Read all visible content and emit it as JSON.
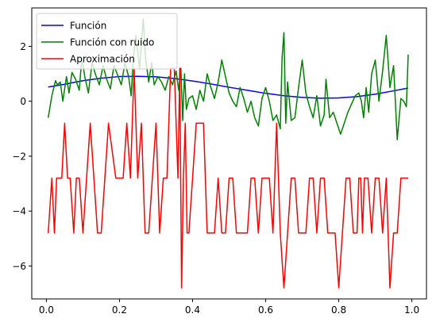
{
  "chart_data": {
    "type": "line",
    "title": "",
    "xlabel": "",
    "ylabel": "",
    "xlim": [
      -0.04,
      1.04
    ],
    "ylim": [
      -7.2,
      3.4
    ],
    "grid": false,
    "legend_position": "top-left",
    "x_ticks": [
      0.0,
      0.2,
      0.4,
      0.6,
      0.8,
      1.0
    ],
    "x_tick_labels": [
      "0.0",
      "0.2",
      "0.4",
      "0.6",
      "0.8",
      "1.0"
    ],
    "y_ticks": [
      2,
      0,
      -2,
      -4,
      -6
    ],
    "y_tick_labels": [
      "2",
      "0",
      "−2",
      "−4",
      "−6"
    ],
    "series": [
      {
        "name": "Función",
        "color": "#0000ff",
        "x": [
          0.005,
          0.05,
          0.1,
          0.15,
          0.2,
          0.25,
          0.3,
          0.35,
          0.4,
          0.45,
          0.5,
          0.55,
          0.6,
          0.65,
          0.7,
          0.75,
          0.8,
          0.85,
          0.9,
          0.95,
          0.99
        ],
        "y": [
          0.52,
          0.62,
          0.75,
          0.84,
          0.9,
          0.91,
          0.89,
          0.83,
          0.74,
          0.63,
          0.51,
          0.4,
          0.29,
          0.2,
          0.14,
          0.11,
          0.12,
          0.17,
          0.26,
          0.38,
          0.48
        ]
      },
      {
        "name": "Función con ruido",
        "color": "#008000",
        "x": [
          0.005,
          0.015,
          0.025,
          0.03,
          0.038,
          0.045,
          0.055,
          0.062,
          0.07,
          0.08,
          0.09,
          0.097,
          0.105,
          0.115,
          0.125,
          0.135,
          0.145,
          0.155,
          0.165,
          0.175,
          0.185,
          0.195,
          0.205,
          0.215,
          0.225,
          0.232,
          0.238,
          0.245,
          0.255,
          0.265,
          0.272,
          0.28,
          0.288,
          0.295,
          0.305,
          0.315,
          0.325,
          0.335,
          0.345,
          0.355,
          0.362,
          0.368,
          0.373,
          0.378,
          0.383,
          0.39,
          0.4,
          0.41,
          0.42,
          0.43,
          0.44,
          0.45,
          0.46,
          0.47,
          0.48,
          0.49,
          0.5,
          0.51,
          0.52,
          0.53,
          0.54,
          0.55,
          0.56,
          0.57,
          0.58,
          0.59,
          0.6,
          0.61,
          0.62,
          0.63,
          0.64,
          0.645,
          0.65,
          0.655,
          0.66,
          0.67,
          0.68,
          0.69,
          0.7,
          0.71,
          0.72,
          0.73,
          0.74,
          0.75,
          0.76,
          0.765,
          0.775,
          0.785,
          0.795,
          0.805,
          0.815,
          0.825,
          0.835,
          0.845,
          0.855,
          0.862,
          0.868,
          0.875,
          0.882,
          0.89,
          0.9,
          0.91,
          0.92,
          0.93,
          0.94,
          0.95,
          0.96,
          0.97,
          0.978,
          0.985,
          0.99
        ],
        "y": [
          -0.6,
          0.2,
          0.75,
          0.6,
          0.7,
          0.0,
          0.9,
          0.3,
          1.05,
          0.8,
          0.4,
          1.6,
          0.9,
          0.3,
          1.4,
          0.95,
          0.6,
          1.3,
          0.8,
          0.45,
          1.3,
          0.95,
          0.6,
          1.4,
          0.9,
          0.2,
          1.6,
          2.4,
          1.2,
          3.0,
          1.5,
          0.7,
          1.4,
          0.6,
          0.9,
          0.7,
          0.4,
          0.9,
          0.6,
          1.1,
          0.4,
          1.2,
          -0.7,
          1.0,
          -0.3,
          0.1,
          0.2,
          -0.3,
          0.4,
          0.0,
          1.0,
          0.5,
          0.1,
          0.7,
          1.5,
          0.9,
          0.3,
          0.0,
          -0.2,
          0.5,
          0.1,
          -0.4,
          0.0,
          -0.6,
          -0.9,
          0.1,
          0.5,
          0.0,
          -0.7,
          -0.5,
          -1.0,
          1.6,
          2.5,
          -0.8,
          0.7,
          -0.7,
          -0.6,
          0.5,
          1.5,
          0.3,
          -0.2,
          -0.6,
          0.2,
          -0.9,
          -0.5,
          0.8,
          -0.6,
          -0.4,
          -0.8,
          -1.2,
          -0.8,
          -0.4,
          -0.1,
          0.2,
          0.3,
          0.0,
          -0.6,
          0.5,
          -0.4,
          1.0,
          1.5,
          0.0,
          1.1,
          2.4,
          0.5,
          1.3,
          -1.4,
          0.1,
          0.0,
          -0.2,
          1.7
        ]
      },
      {
        "name": "Aproximación",
        "color": "#ff0000",
        "x": [
          0.005,
          0.015,
          0.022,
          0.028,
          0.035,
          0.042,
          0.05,
          0.058,
          0.065,
          0.075,
          0.082,
          0.09,
          0.1,
          0.11,
          0.12,
          0.13,
          0.14,
          0.15,
          0.16,
          0.17,
          0.18,
          0.19,
          0.2,
          0.21,
          0.22,
          0.23,
          0.235,
          0.24,
          0.245,
          0.25,
          0.26,
          0.27,
          0.28,
          0.29,
          0.3,
          0.31,
          0.32,
          0.33,
          0.34,
          0.35,
          0.36,
          0.365,
          0.37,
          0.375,
          0.38,
          0.385,
          0.39,
          0.4,
          0.41,
          0.42,
          0.43,
          0.44,
          0.45,
          0.46,
          0.47,
          0.48,
          0.49,
          0.5,
          0.51,
          0.52,
          0.53,
          0.54,
          0.55,
          0.56,
          0.57,
          0.58,
          0.59,
          0.6,
          0.61,
          0.62,
          0.63,
          0.64,
          0.65,
          0.66,
          0.67,
          0.68,
          0.69,
          0.7,
          0.71,
          0.72,
          0.73,
          0.74,
          0.75,
          0.76,
          0.77,
          0.78,
          0.79,
          0.8,
          0.81,
          0.82,
          0.83,
          0.84,
          0.85,
          0.855,
          0.86,
          0.865,
          0.87,
          0.88,
          0.89,
          0.9,
          0.91,
          0.92,
          0.93,
          0.94,
          0.95,
          0.96,
          0.97,
          0.98,
          0.99
        ],
        "y": [
          -4.8,
          -2.8,
          -4.8,
          -2.8,
          -2.8,
          -2.8,
          -0.8,
          -2.8,
          -2.8,
          -4.8,
          -2.8,
          -2.8,
          -4.8,
          -2.8,
          -0.8,
          -2.8,
          -4.8,
          -4.8,
          -2.8,
          -0.8,
          -1.8,
          -2.8,
          -2.8,
          -2.8,
          -0.8,
          -2.8,
          -0.8,
          1.2,
          -0.8,
          -2.8,
          -0.8,
          -4.8,
          -4.8,
          -2.8,
          -0.8,
          -4.8,
          -2.8,
          -2.8,
          1.2,
          1.2,
          -2.8,
          1.2,
          -6.8,
          -2.8,
          -0.8,
          -4.8,
          -4.8,
          -2.8,
          -0.8,
          -0.8,
          -0.8,
          -4.8,
          -4.8,
          -4.8,
          -2.8,
          -4.8,
          -4.8,
          -2.8,
          -2.8,
          -4.8,
          -4.8,
          -4.8,
          -4.8,
          -2.8,
          -2.8,
          -4.8,
          -2.8,
          -2.8,
          -2.8,
          -4.8,
          -0.8,
          -4.8,
          -6.8,
          -4.8,
          -2.8,
          -2.8,
          -4.8,
          -4.8,
          -4.8,
          -2.8,
          -2.8,
          -4.8,
          -2.8,
          -2.8,
          -4.8,
          -4.8,
          -4.8,
          -6.8,
          -4.8,
          -2.8,
          -2.8,
          -4.8,
          -4.8,
          -2.8,
          -2.8,
          -4.8,
          -2.8,
          -2.8,
          -4.8,
          -2.8,
          -2.8,
          -4.8,
          -2.8,
          -6.8,
          -4.8,
          -4.8,
          -2.8,
          -2.8,
          -2.8
        ]
      }
    ]
  }
}
